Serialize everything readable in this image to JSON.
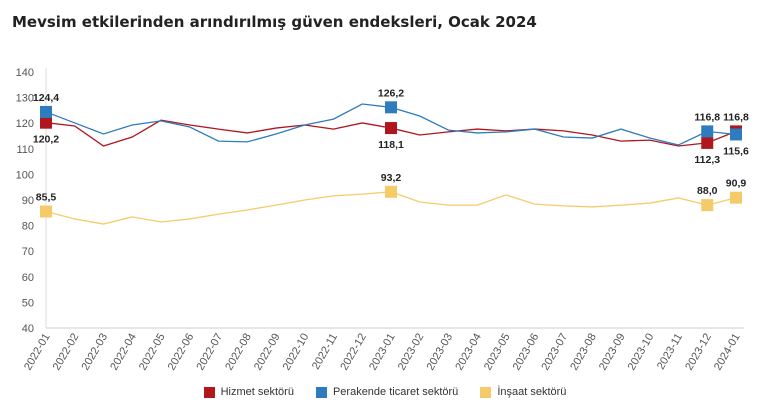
{
  "title": "Mevsim etkilerinden arındırılmış güven endeksleri, Ocak 2024",
  "chart_data": {
    "type": "line",
    "title": "Mevsim etkilerinden arındırılmış güven endeksleri, Ocak 2024",
    "xlabel": "",
    "ylabel": "",
    "ylim": [
      40,
      140
    ],
    "yticks": [
      40,
      50,
      60,
      70,
      80,
      90,
      100,
      110,
      120,
      130,
      140
    ],
    "grid": false,
    "legend": "bottom",
    "categories": [
      "2022-01",
      "2022-02",
      "2022-03",
      "2022-04",
      "2022-05",
      "2022-06",
      "2022-07",
      "2022-08",
      "2022-09",
      "2022-10",
      "2022-11",
      "2022-12",
      "2023-01",
      "2023-02",
      "2023-03",
      "2023-04",
      "2023-05",
      "2023-06",
      "2023-07",
      "2023-08",
      "2023-09",
      "2023-10",
      "2023-11",
      "2023-12",
      "2024-01"
    ],
    "series": [
      {
        "name": "Hizmet sektörü",
        "color": "#b0161e",
        "values": [
          120.2,
          118.9,
          111.1,
          114.6,
          121.2,
          119.3,
          117.7,
          116.2,
          118.1,
          119.3,
          117.7,
          120.1,
          118.1,
          115.4,
          116.6,
          117.7,
          117.0,
          117.7,
          117.0,
          115.4,
          113.0,
          113.4,
          111.1,
          112.3,
          116.8
        ],
        "labels": [
          {
            "i": 0,
            "text": "120,2",
            "pos": "below"
          },
          {
            "i": 12,
            "text": "118,1",
            "pos": "below"
          },
          {
            "i": 23,
            "text": "112,3",
            "pos": "below"
          },
          {
            "i": 24,
            "text": "116,8",
            "pos": "above"
          }
        ]
      },
      {
        "name": "Perakende ticaret sektörü",
        "color": "#2e7bbd",
        "values": [
          124.4,
          120.1,
          115.8,
          119.3,
          120.9,
          118.5,
          113.0,
          112.7,
          115.8,
          119.3,
          121.6,
          127.5,
          126.2,
          122.8,
          117.3,
          116.2,
          116.6,
          117.7,
          114.6,
          114.2,
          117.7,
          114.2,
          111.5,
          116.8,
          115.6
        ],
        "labels": [
          {
            "i": 0,
            "text": "124,4",
            "pos": "above"
          },
          {
            "i": 12,
            "text": "126,2",
            "pos": "above"
          },
          {
            "i": 23,
            "text": "116,8",
            "pos": "above"
          },
          {
            "i": 24,
            "text": "115,6",
            "pos": "below"
          }
        ]
      },
      {
        "name": "İnşaat sektörü",
        "color": "#f5cb6a",
        "values": [
          85.5,
          82.6,
          80.6,
          83.4,
          81.4,
          82.6,
          84.5,
          86.1,
          88.0,
          90.0,
          91.6,
          92.3,
          93.2,
          89.2,
          88.0,
          88.0,
          92.0,
          88.4,
          87.7,
          87.3,
          88.0,
          88.8,
          90.8,
          88.0,
          90.9
        ],
        "labels": [
          {
            "i": 0,
            "text": "85,5",
            "pos": "above"
          },
          {
            "i": 12,
            "text": "93,2",
            "pos": "above"
          },
          {
            "i": 23,
            "text": "88,0",
            "pos": "above"
          },
          {
            "i": 24,
            "text": "90,9",
            "pos": "above"
          }
        ]
      }
    ]
  }
}
